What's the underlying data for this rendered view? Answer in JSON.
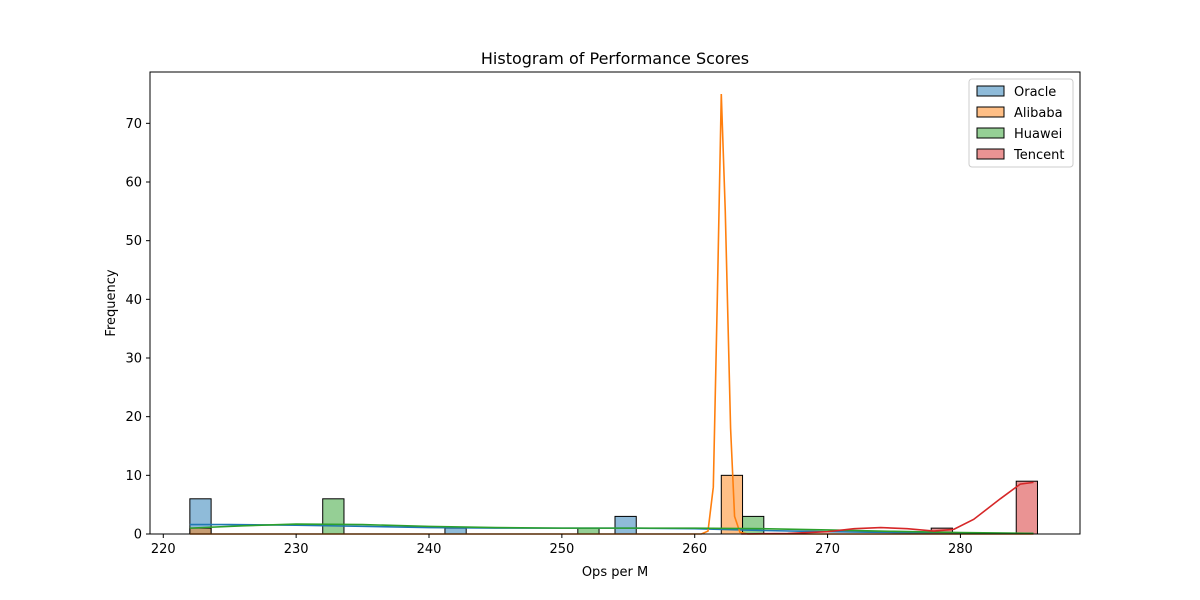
{
  "chart_data": {
    "type": "histogram",
    "title": "Histogram of Performance Scores",
    "xlabel": "Ops per M",
    "ylabel": "Frequency",
    "xlim": [
      219,
      289
    ],
    "ylim": [
      0,
      78.75
    ],
    "xticks": [
      220,
      230,
      240,
      250,
      260,
      270,
      280
    ],
    "yticks": [
      0,
      10,
      20,
      30,
      40,
      50,
      60,
      70
    ],
    "legend_position": "top-right",
    "bin_width": 1.6,
    "series": [
      {
        "name": "Oracle",
        "color": "#1f77b4",
        "bins": [
          [
            222,
            6
          ],
          [
            241.2,
            1
          ],
          [
            254,
            3
          ]
        ],
        "kde": [
          [
            222,
            1.6
          ],
          [
            225,
            1.6
          ],
          [
            230,
            1.5
          ],
          [
            235,
            1.3
          ],
          [
            240,
            1.1
          ],
          [
            245,
            1.0
          ],
          [
            250,
            1.0
          ],
          [
            255,
            1.0
          ],
          [
            260,
            0.9
          ],
          [
            265,
            0.6
          ],
          [
            270,
            0.4
          ],
          [
            275,
            0.25
          ],
          [
            280,
            0.15
          ],
          [
            285.5,
            0.1
          ]
        ]
      },
      {
        "name": "Alibaba",
        "color": "#ff7f0e",
        "bins": [
          [
            222,
            1
          ],
          [
            262,
            10
          ]
        ],
        "kde": [
          [
            222,
            0
          ],
          [
            260.5,
            0
          ],
          [
            261,
            0.5
          ],
          [
            261.4,
            8
          ],
          [
            261.7,
            40
          ],
          [
            262.0,
            75
          ],
          [
            262.3,
            55
          ],
          [
            262.7,
            18
          ],
          [
            263.0,
            3
          ],
          [
            263.4,
            0.3
          ],
          [
            264,
            0
          ],
          [
            285.5,
            0
          ]
        ]
      },
      {
        "name": "Huawei",
        "color": "#2ca02c",
        "bins": [
          [
            232,
            6
          ],
          [
            251.2,
            1
          ],
          [
            263.6,
            3
          ]
        ],
        "kde": [
          [
            222,
            1.0
          ],
          [
            226,
            1.4
          ],
          [
            230,
            1.7
          ],
          [
            235,
            1.6
          ],
          [
            240,
            1.3
          ],
          [
            245,
            1.1
          ],
          [
            250,
            1.0
          ],
          [
            255,
            1.0
          ],
          [
            260,
            1.0
          ],
          [
            265,
            0.9
          ],
          [
            270,
            0.7
          ],
          [
            275,
            0.45
          ],
          [
            280,
            0.25
          ],
          [
            285.5,
            0.1
          ]
        ]
      },
      {
        "name": "Tencent",
        "color": "#d62728",
        "bins": [
          [
            277.8,
            1
          ],
          [
            284.2,
            9
          ]
        ],
        "kde": [
          [
            263.5,
            0
          ],
          [
            267,
            0.1
          ],
          [
            270,
            0.4
          ],
          [
            272,
            0.9
          ],
          [
            274,
            1.1
          ],
          [
            276,
            0.9
          ],
          [
            278,
            0.5
          ],
          [
            279.5,
            0.8
          ],
          [
            281,
            2.5
          ],
          [
            283,
            6.0
          ],
          [
            284.5,
            8.5
          ],
          [
            285.5,
            8.8
          ]
        ]
      }
    ]
  }
}
